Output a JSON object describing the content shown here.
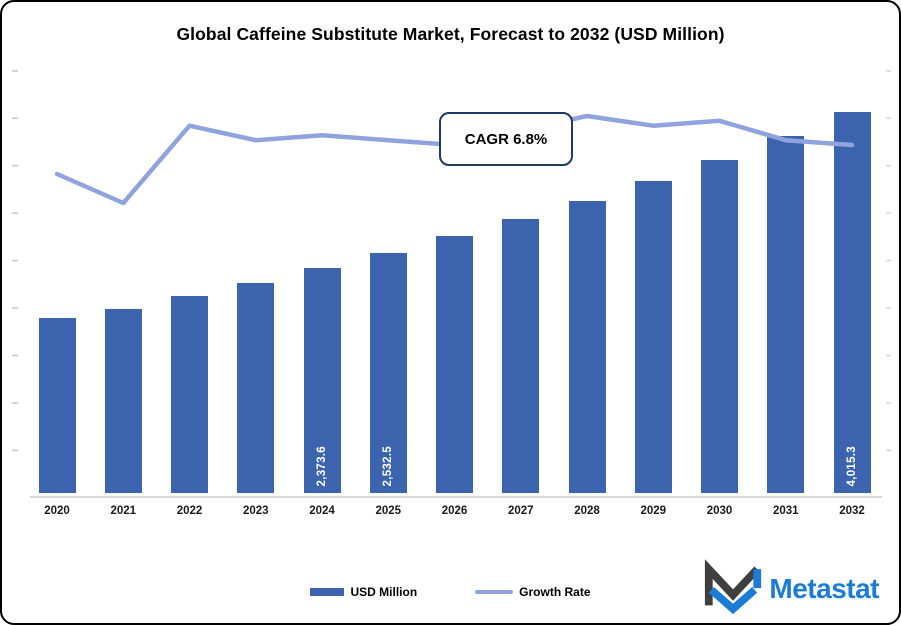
{
  "title": "Global Caffeine Substitute Market, Forecast to 2032 (USD Million)",
  "cagr_label": "CAGR 6.8%",
  "legend": {
    "bars": "USD Million",
    "line": "Growth Rate"
  },
  "brand": {
    "name": "Metastat"
  },
  "colors": {
    "bar": "#3B63AE",
    "line": "#8FA4DC",
    "cagr_border": "#1F3864",
    "brand_blue": "#1B7BD5",
    "brand_dark": "#3F3F3F",
    "tick": "#C9C9C9",
    "baseline": "#D9D9D9"
  },
  "chart_data": {
    "type": "combo",
    "title": "Global Caffeine Substitute Market, Forecast to 2032 (USD Million)",
    "categories": [
      "2020",
      "2021",
      "2022",
      "2023",
      "2024",
      "2025",
      "2026",
      "2027",
      "2028",
      "2029",
      "2030",
      "2031",
      "2032"
    ],
    "series": [
      {
        "name": "USD Million",
        "type": "bar",
        "values": [
          1845,
          1940,
          2077,
          2216,
          2373.6,
          2532.5,
          2704,
          2886,
          3082,
          3291,
          3513,
          3761,
          4015.3
        ],
        "values_note": "only 2024, 2025 and 2032 are labeled in the image; other values estimated from bar heights",
        "shown_labels": [
          "",
          "",
          "",
          "",
          "2,373.6",
          "2,532.5",
          "",
          "",
          "",
          "",
          "",
          "",
          "4,015.3"
        ]
      },
      {
        "name": "Growth Rate",
        "type": "line",
        "values": [
          5.9,
          5.3,
          6.9,
          6.6,
          6.7,
          6.6,
          6.5,
          6.8,
          7.1,
          6.9,
          7.0,
          6.6,
          6.5
        ],
        "unit": "%",
        "values_note": "line has no labeled axis; percentages estimated from line position"
      }
    ],
    "annotations": [
      {
        "text": "CAGR 6.8%",
        "style": "rounded-box"
      }
    ],
    "xlabel": "",
    "ylabel": "",
    "ylim": [
      0,
      4500
    ],
    "y_tick_step": 500,
    "grid": false,
    "y_axis_labels_visible": false,
    "legend_position": "bottom"
  }
}
